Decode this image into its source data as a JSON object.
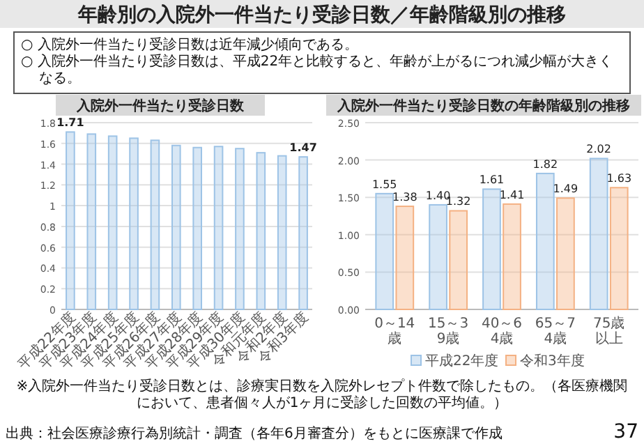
{
  "chart_data": [
    {
      "type": "other",
      "title": "年齢別の入院外一件当たり受診日数／年齢階級別の推移",
      "annotations": [
        "○ 入院外一件当たり受診日数は近年減少傾向である。",
        "○ 入院外一件当たり受診日数は、平成22年と比較すると、年齢が上がるにつれ減少幅が大きくなる。",
        "※入院外一件当たり受診日数とは、診療実日数を入院外レセプト件数で除したもの。（各医療機関において、患者個々人が1ヶ月に受診した回数の平均値。）",
        "出典：社会医療診療行為別統計・調査（各年6月審査分）をもとに医療課で作成",
        "37"
      ]
    },
    {
      "type": "bar",
      "title": "入院外一件当たり受診日数",
      "categories": [
        "平成22年度",
        "平成23年度",
        "平成24年度",
        "平成25年度",
        "平成26年度",
        "平成27年度",
        "平成28年度",
        "平成29年度",
        "平成30年度",
        "令和元年度",
        "令和2年度",
        "令和3年度"
      ],
      "values": [
        1.71,
        1.69,
        1.67,
        1.65,
        1.63,
        1.58,
        1.56,
        1.57,
        1.55,
        1.51,
        1.48,
        1.47
      ],
      "color": "#9dc3e6",
      "value_labels": [
        "1.71",
        null,
        null,
        null,
        null,
        null,
        null,
        null,
        null,
        null,
        null,
        "1.47"
      ],
      "ylim": [
        0,
        1.8
      ],
      "yticks": [
        0,
        0.2,
        0.4,
        0.6,
        0.8,
        1,
        1.2,
        1.4,
        1.6,
        1.8
      ],
      "grid": "y"
    },
    {
      "type": "bar",
      "title": "入院外一件当たり受診日数の年齢階級別の推移",
      "categories": [
        "0～14歳",
        "15～39歳",
        "40～64歳",
        "65～74歳",
        "75歳以上"
      ],
      "series": [
        {
          "name": "平成22年度",
          "color": "#9dc3e6",
          "values": [
            1.55,
            1.4,
            1.61,
            1.82,
            2.02
          ],
          "value_labels": [
            "1.55",
            "1.40",
            "1.61",
            "1.82",
            "2.02"
          ]
        },
        {
          "name": "令和3年度",
          "color": "#f4b183",
          "values": [
            1.38,
            1.32,
            1.41,
            1.49,
            1.63
          ],
          "value_labels": [
            "1.38",
            "1.32",
            "1.41",
            "1.49",
            "1.63"
          ]
        }
      ],
      "ylim": [
        0,
        2.5
      ],
      "yticks": [
        {
          "value": 0,
          "label": "0.00"
        },
        {
          "value": 0.5,
          "label": "0.50"
        },
        {
          "value": 1,
          "label": "1.00"
        },
        {
          "value": 1.5,
          "label": "1.50"
        },
        {
          "value": 2,
          "label": "2.00"
        },
        {
          "value": 2.5,
          "label": "2.50"
        }
      ],
      "grid": "y",
      "legend": "bottom"
    }
  ]
}
